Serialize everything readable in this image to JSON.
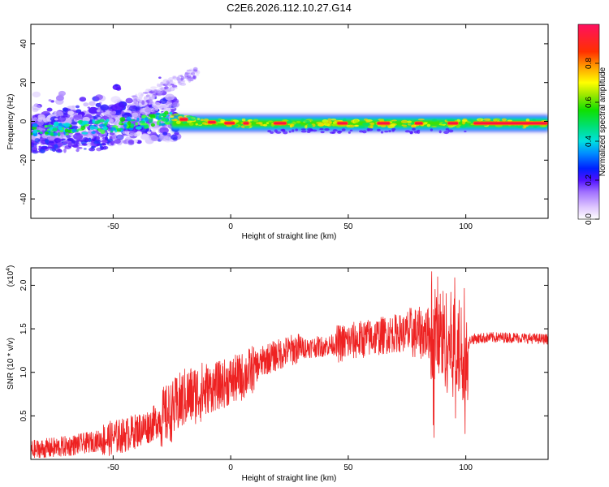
{
  "chart_data": [
    {
      "type": "heatmap",
      "title": "C2E6.2026.112.10.27.G14",
      "xlabel": "Height of straight line (km)",
      "ylabel": "Frequency (Hz)",
      "xlim": [
        -85,
        135
      ],
      "ylim": [
        -50,
        50
      ],
      "xticks": [
        -50,
        0,
        50,
        100
      ],
      "yticks": [
        -40,
        -20,
        0,
        20,
        40
      ],
      "colorbar": {
        "label": "Normalized spectral amplitude",
        "range": [
          0,
          1
        ],
        "ticks": [
          "0.0",
          "0.2",
          "0.4",
          "0.6",
          "0.8"
        ]
      },
      "ridge": [
        {
          "x": -85,
          "y": -5
        },
        {
          "x": -60,
          "y": -3
        },
        {
          "x": -40,
          "y": -1
        },
        {
          "x": -25,
          "y": 2
        },
        {
          "x": -15,
          "y": 0
        },
        {
          "x": 0,
          "y": -1
        },
        {
          "x": 50,
          "y": -1
        },
        {
          "x": 100,
          "y": -1
        },
        {
          "x": 135,
          "y": -1
        }
      ]
    },
    {
      "type": "line",
      "xlabel": "Height of straight line (km)",
      "ylabel": "SNR (10 * v/v)",
      "scale_label": "(x10",
      "scale_exponent": "4",
      "xlim": [
        -85,
        135
      ],
      "ylim": [
        0,
        2.2
      ],
      "xticks": [
        -50,
        0,
        50,
        100
      ],
      "yticks": [
        "0.5",
        "1.0",
        "1.5",
        "2.0"
      ],
      "series": [
        {
          "color": "#ee2222",
          "x": [
            -85,
            -70,
            -55,
            -45,
            -35,
            -25,
            -20,
            -10,
            -5,
            5,
            10,
            15,
            20,
            25,
            30,
            40,
            50,
            60,
            70,
            80,
            85,
            90,
            95,
            100,
            102,
            110,
            120,
            135
          ],
          "y": [
            0.1,
            0.15,
            0.22,
            0.28,
            0.38,
            0.55,
            0.7,
            0.8,
            0.85,
            0.95,
            1.05,
            1.15,
            1.2,
            1.25,
            1.28,
            1.3,
            1.35,
            1.4,
            1.45,
            1.45,
            1.45,
            1.4,
            1.3,
            1.2,
            1.38,
            1.4,
            1.4,
            1.38
          ]
        }
      ]
    }
  ]
}
